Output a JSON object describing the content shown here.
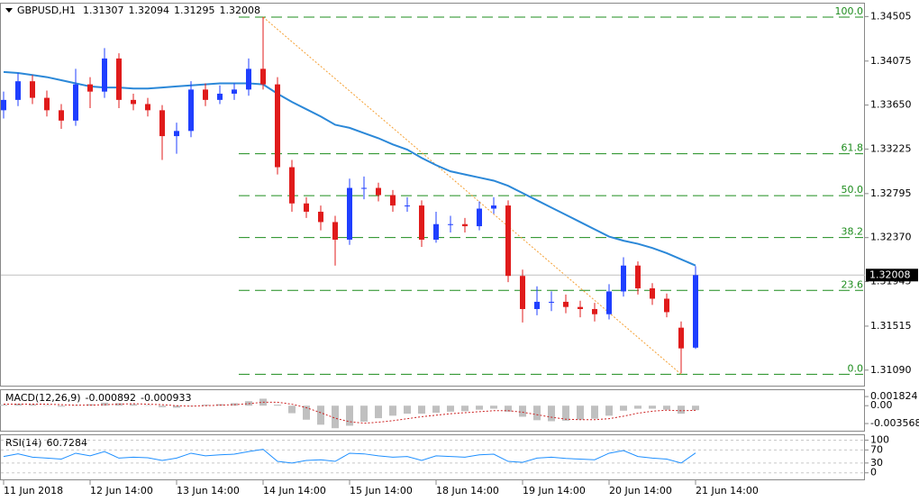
{
  "chart_data": [
    {
      "type": "candlestick",
      "title": "GBPUSD,H1",
      "xlim": [
        -0.25,
        59.75
      ],
      "xticks": [
        {
          "value": 0,
          "label": "11 Jun 2018"
        },
        {
          "value": 6,
          "label": "12 Jun 14:00"
        },
        {
          "value": 12,
          "label": "13 Jun 14:00"
        },
        {
          "value": 18,
          "label": "14 Jun 14:00"
        },
        {
          "value": 24,
          "label": "15 Jun 14:00"
        },
        {
          "value": 30,
          "label": "18 Jun 14:00"
        },
        {
          "value": 36,
          "label": "19 Jun 14:00"
        },
        {
          "value": 42,
          "label": "20 Jun 14:00"
        },
        {
          "value": 48,
          "label": "21 Jun 14:00"
        }
      ],
      "ylim": [
        1.3094,
        1.3463
      ],
      "yticks": [
        1.34505,
        1.34075,
        {
          "value": 1.3365,
          "label": "1.33650"
        },
        1.33225,
        1.32795,
        {
          "value": 1.3237,
          "label": "1.32370"
        },
        1.31945,
        1.31515,
        {
          "value": 1.3109,
          "label": "1.31090"
        }
      ],
      "up_color": "#1f3fff",
      "down_color": "#e01b1b",
      "fib_color": "#1c8c1c",
      "trend_color": "#f5a033",
      "open": [
        1.336,
        1.337,
        1.3388,
        1.3372,
        1.336,
        1.335,
        1.3385,
        1.3378,
        1.341,
        1.337,
        1.3366,
        1.336,
        1.3335,
        1.334,
        1.338,
        1.337,
        1.3376,
        1.338,
        1.34,
        1.3385,
        1.3305,
        1.327,
        1.3262,
        1.3252,
        1.3235,
        1.3285,
        1.3285,
        1.3278,
        1.3268,
        1.3268,
        1.3235,
        1.325,
        1.325,
        1.3248,
        1.3265,
        1.3268,
        1.32,
        1.3168,
        1.3175,
        1.3175,
        1.317,
        1.3168,
        1.3163,
        1.3185,
        1.321,
        1.3188,
        1.3178,
        1.315,
        1.31307
      ],
      "high": [
        1.3378,
        1.3396,
        1.3394,
        1.3379,
        1.3366,
        1.34,
        1.3392,
        1.342,
        1.3415,
        1.3376,
        1.3372,
        1.3365,
        1.3348,
        1.3388,
        1.3386,
        1.3384,
        1.3386,
        1.341,
        1.345,
        1.3392,
        1.3312,
        1.3276,
        1.3268,
        1.3258,
        1.3294,
        1.3296,
        1.329,
        1.3283,
        1.3276,
        1.3273,
        1.3262,
        1.3258,
        1.3256,
        1.3272,
        1.3276,
        1.3273,
        1.3206,
        1.319,
        1.3185,
        1.3182,
        1.3176,
        1.3174,
        1.3192,
        1.3218,
        1.3214,
        1.3193,
        1.3183,
        1.3156,
        1.32094
      ],
      "low": [
        1.3352,
        1.3364,
        1.3366,
        1.3354,
        1.3342,
        1.3345,
        1.3362,
        1.3372,
        1.3362,
        1.336,
        1.3354,
        1.3312,
        1.3318,
        1.3334,
        1.3364,
        1.3366,
        1.337,
        1.3374,
        1.338,
        1.3298,
        1.3262,
        1.3256,
        1.3244,
        1.321,
        1.323,
        1.3274,
        1.3272,
        1.3262,
        1.3262,
        1.3228,
        1.3232,
        1.3242,
        1.3242,
        1.3244,
        1.326,
        1.3194,
        1.3155,
        1.3162,
        1.3166,
        1.3164,
        1.316,
        1.3156,
        1.3158,
        1.318,
        1.3182,
        1.3172,
        1.316,
        1.3106,
        1.31295
      ],
      "close": [
        1.337,
        1.3388,
        1.3372,
        1.336,
        1.335,
        1.3385,
        1.3378,
        1.341,
        1.337,
        1.3366,
        1.336,
        1.3335,
        1.334,
        1.338,
        1.337,
        1.3376,
        1.338,
        1.34,
        1.3385,
        1.3305,
        1.327,
        1.3262,
        1.3252,
        1.3235,
        1.3285,
        1.3285,
        1.3278,
        1.3268,
        1.3268,
        1.3235,
        1.325,
        1.325,
        1.3248,
        1.3265,
        1.3268,
        1.32,
        1.3168,
        1.3175,
        1.3175,
        1.317,
        1.3168,
        1.3163,
        1.3185,
        1.321,
        1.3188,
        1.3178,
        1.3165,
        1.313,
        1.32008
      ],
      "series": [
        {
          "color": "#2b88d8",
          "values": [
            1.3397,
            1.3396,
            1.3394,
            1.3392,
            1.3389,
            1.3386,
            1.3383,
            1.3382,
            1.3382,
            1.3381,
            1.3381,
            1.3382,
            1.3383,
            1.3384,
            1.3385,
            1.3386,
            1.3386,
            1.3386,
            1.3385,
            1.3376,
            1.3368,
            1.3361,
            1.3354,
            1.3346,
            1.3343,
            1.3338,
            1.3333,
            1.3327,
            1.3322,
            1.3314,
            1.3307,
            1.3301,
            1.3298,
            1.3295,
            1.3292,
            1.3287,
            1.328,
            1.3273,
            1.3266,
            1.3259,
            1.3252,
            1.3245,
            1.3238,
            1.3234,
            1.3231,
            1.3227,
            1.3222,
            1.3216,
            1.321
          ]
        }
      ],
      "fib_levels": [
        {
          "value": 1.345,
          "label": "100.0"
        },
        {
          "value": 1.3318,
          "label": "61.8"
        },
        {
          "value": 1.32775,
          "label": "50.0"
        },
        {
          "value": 1.3237,
          "label": "38.2"
        },
        {
          "value": 1.3186,
          "label": "23.6"
        },
        {
          "value": 1.3105,
          "label": "0.0"
        }
      ]
    },
    {
      "type": "macd",
      "title": "MACD(12,26,9)",
      "ylim": [
        -0.005,
        0.0031
      ],
      "yticks": [
        0.001824,
        {
          "value": 0,
          "label": "0.00"
        },
        -0.003568
      ],
      "color": "#c0c0c0",
      "signal_color": "#cc2222",
      "values": [
        0.0002,
        0.0004,
        0.0003,
        0.0001,
        -0.0002,
        0.0001,
        0.0003,
        0.0006,
        0.0005,
        0.0003,
        0.0001,
        -0.0003,
        -0.0004,
        0,
        0.0002,
        0.0003,
        0.0005,
        0.0009,
        0.0014,
        0.0002,
        -0.0015,
        -0.0028,
        -0.0038,
        -0.0045,
        -0.004,
        -0.0032,
        -0.0025,
        -0.002,
        -0.0016,
        -0.0016,
        -0.0014,
        -0.0012,
        -0.0011,
        -0.0008,
        -0.0006,
        -0.0012,
        -0.0022,
        -0.0029,
        -0.0031,
        -0.003,
        -0.0028,
        -0.0026,
        -0.002,
        -0.001,
        -0.0006,
        -0.0006,
        -0.0008,
        -0.0016,
        -0.000892
      ],
      "signal": [
        0.0003,
        0.0003,
        0.0003,
        0.0003,
        0.0002,
        0.0001,
        0.0001,
        0.0002,
        0.0003,
        0.0004,
        0.0003,
        0.0002,
        0,
        -0.0001,
        0,
        0.0001,
        0.0002,
        0.0004,
        0.0007,
        0.0007,
        0.0003,
        -0.0004,
        -0.0014,
        -0.0025,
        -0.0032,
        -0.0035,
        -0.0033,
        -0.003,
        -0.0026,
        -0.0022,
        -0.0019,
        -0.0016,
        -0.0014,
        -0.0012,
        -0.001,
        -0.001,
        -0.0013,
        -0.0018,
        -0.0023,
        -0.0027,
        -0.0028,
        -0.0028,
        -0.0026,
        -0.0021,
        -0.0015,
        -0.0011,
        -0.0009,
        -0.001,
        -0.000933
      ]
    },
    {
      "type": "rsi",
      "title": "RSI(14)",
      "ylim": [
        -20,
        115
      ],
      "yticks": [
        100,
        70,
        30,
        0
      ],
      "grid": true,
      "color": "#1e8fff",
      "values": [
        50,
        58,
        48,
        45,
        42,
        60,
        52,
        65,
        45,
        48,
        46,
        38,
        45,
        60,
        52,
        55,
        57,
        65,
        72,
        35,
        30,
        38,
        40,
        35,
        60,
        58,
        52,
        48,
        50,
        38,
        52,
        50,
        48,
        55,
        57,
        35,
        32,
        45,
        48,
        44,
        42,
        40,
        60,
        68,
        50,
        45,
        42,
        30,
        60.7284
      ]
    }
  ]
}
